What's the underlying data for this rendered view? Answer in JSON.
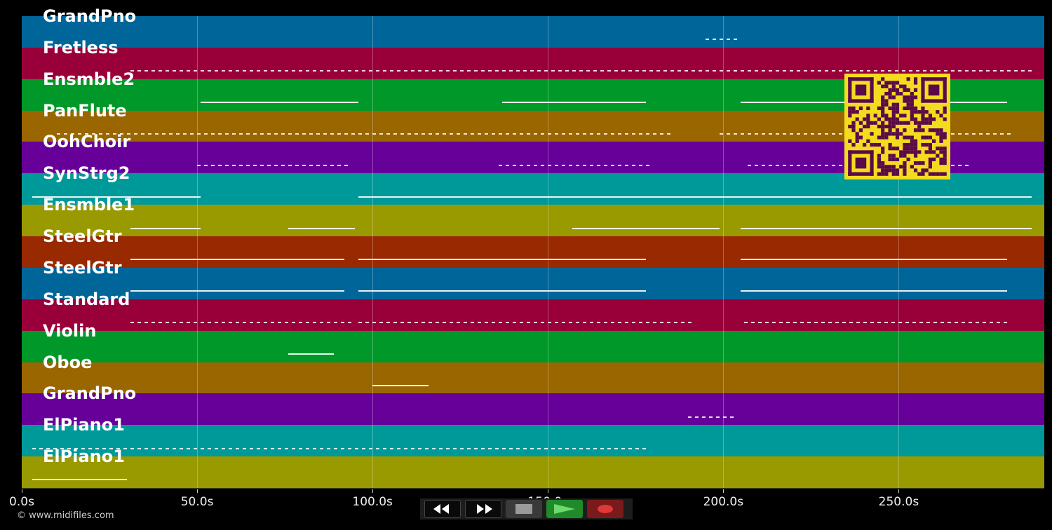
{
  "tracks": [
    {
      "name": "GrandPno",
      "color": "#006699"
    },
    {
      "name": "Fretless",
      "color": "#99003a"
    },
    {
      "name": "Ensmble2",
      "color": "#009929"
    },
    {
      "name": "PanFlute",
      "color": "#996600"
    },
    {
      "name": "OohChoir",
      "color": "#660099"
    },
    {
      "name": "SynStrg2",
      "color": "#009999"
    },
    {
      "name": "Ensmble1",
      "color": "#999900"
    },
    {
      "name": "SteelGtr",
      "color": "#992900"
    },
    {
      "name": "SteelGtr",
      "color": "#006699"
    },
    {
      "name": "Standard",
      "color": "#99003a"
    },
    {
      "name": "Violin",
      "color": "#009929"
    },
    {
      "name": "Oboe",
      "color": "#996600"
    },
    {
      "name": "GrandPno",
      "color": "#660099"
    },
    {
      "name": "ElPiano1",
      "color": "#009999"
    },
    {
      "name": "ElPiano1",
      "color": "#999900"
    }
  ],
  "time_axis": {
    "ticks": [
      "0.0s",
      "50.0s",
      "100.0s",
      "150.0s",
      "200.0s",
      "250.0s"
    ],
    "tick_values": [
      0,
      50,
      100,
      150,
      200,
      250
    ],
    "max_seconds": 291.5
  },
  "transport": {
    "rewind": "rewind-icon",
    "fast_forward": "fast-forward-icon",
    "stop": "stop-icon",
    "play": "play-icon",
    "record": "record-icon",
    "play_color": "#1f8a2a",
    "record_color": "#7a1a1a"
  },
  "qr_code": {
    "fg": "#5a0a4a",
    "bg": "#f3dc1f"
  },
  "copyright": "© www.midifiles.com",
  "note_segments": [
    {
      "track": 0,
      "start": 195,
      "end": 205,
      "dot": true
    },
    {
      "track": 1,
      "start": 31,
      "end": 204,
      "dot": true
    },
    {
      "track": 1,
      "start": 203,
      "end": 288,
      "dot": true
    },
    {
      "track": 2,
      "start": 51,
      "end": 96,
      "dot": false
    },
    {
      "track": 2,
      "start": 137,
      "end": 178,
      "dot": false
    },
    {
      "track": 2,
      "start": 205,
      "end": 281,
      "dot": false
    },
    {
      "track": 3,
      "start": 10,
      "end": 186,
      "dot": true
    },
    {
      "track": 3,
      "start": 199,
      "end": 282,
      "dot": true
    },
    {
      "track": 4,
      "start": 50,
      "end": 93,
      "dot": true
    },
    {
      "track": 4,
      "start": 136,
      "end": 179,
      "dot": true
    },
    {
      "track": 4,
      "start": 207,
      "end": 271,
      "dot": true
    },
    {
      "track": 5,
      "start": 3,
      "end": 51,
      "dot": false
    },
    {
      "track": 5,
      "start": 96,
      "end": 205,
      "dot": false
    },
    {
      "track": 5,
      "start": 205,
      "end": 288,
      "dot": false
    },
    {
      "track": 6,
      "start": 31,
      "end": 51,
      "dot": false
    },
    {
      "track": 6,
      "start": 76,
      "end": 95,
      "dot": false
    },
    {
      "track": 6,
      "start": 157,
      "end": 199,
      "dot": false
    },
    {
      "track": 6,
      "start": 205,
      "end": 288,
      "dot": false
    },
    {
      "track": 7,
      "start": 31,
      "end": 92,
      "dot": false
    },
    {
      "track": 7,
      "start": 96,
      "end": 178,
      "dot": false
    },
    {
      "track": 7,
      "start": 205,
      "end": 281,
      "dot": false
    },
    {
      "track": 8,
      "start": 31,
      "end": 92,
      "dot": false
    },
    {
      "track": 8,
      "start": 96,
      "end": 178,
      "dot": false
    },
    {
      "track": 8,
      "start": 205,
      "end": 281,
      "dot": false
    },
    {
      "track": 9,
      "start": 31,
      "end": 95,
      "dot": true
    },
    {
      "track": 9,
      "start": 96,
      "end": 192,
      "dot": true
    },
    {
      "track": 9,
      "start": 206,
      "end": 281,
      "dot": true
    },
    {
      "track": 10,
      "start": 76,
      "end": 89,
      "dot": false
    },
    {
      "track": 11,
      "start": 100,
      "end": 116,
      "dot": false
    },
    {
      "track": 12,
      "start": 190,
      "end": 204,
      "dot": true
    },
    {
      "track": 13,
      "start": 3,
      "end": 178,
      "dot": true
    },
    {
      "track": 14,
      "start": 3,
      "end": 30,
      "dot": false
    }
  ]
}
